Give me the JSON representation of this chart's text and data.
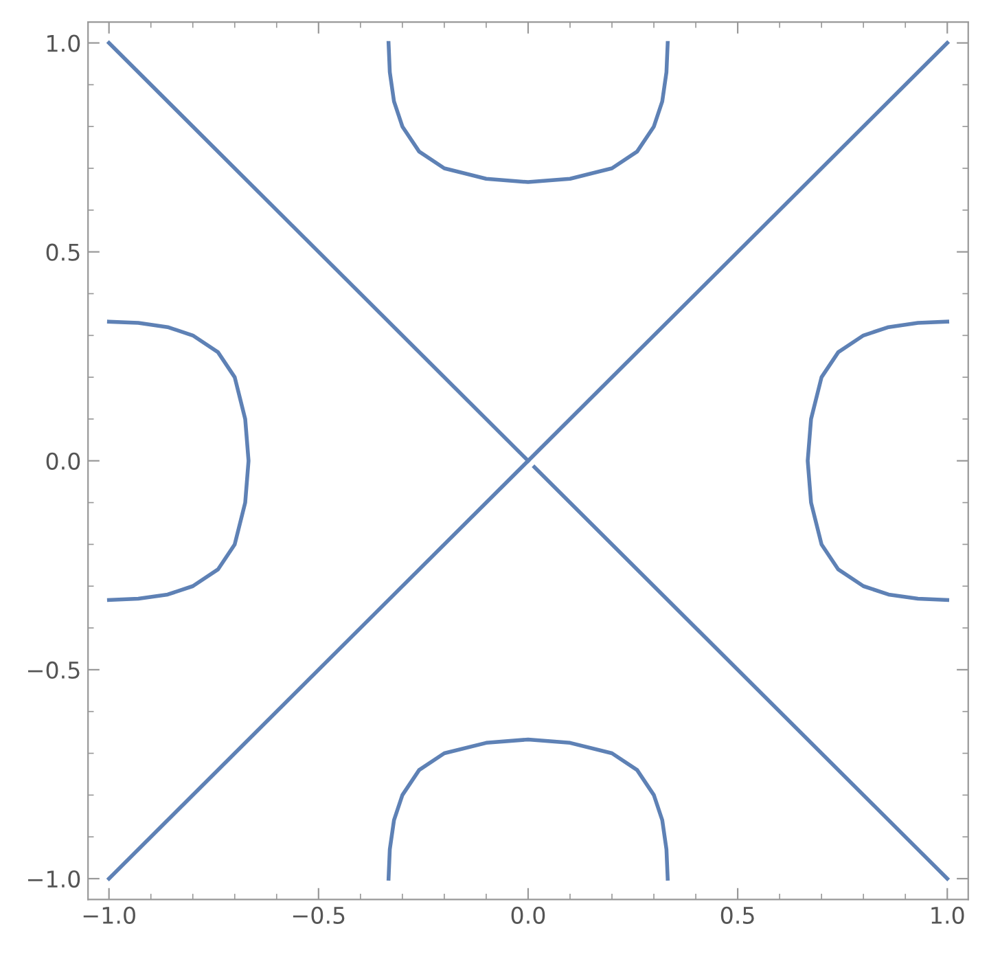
{
  "chart_data": {
    "type": "line",
    "xlim": [
      -1.05,
      1.05
    ],
    "ylim": [
      -1.05,
      1.05
    ],
    "xticks": [
      {
        "value": -1.0,
        "label": "−1.0"
      },
      {
        "value": -0.5,
        "label": "−0.5"
      },
      {
        "value": 0.0,
        "label": "0.0"
      },
      {
        "value": 0.5,
        "label": "0.5"
      },
      {
        "value": 1.0,
        "label": "1.0"
      }
    ],
    "yticks": [
      {
        "value": -1.0,
        "label": "−1.0"
      },
      {
        "value": -0.5,
        "label": "−0.5"
      },
      {
        "value": 0.0,
        "label": "0.0"
      },
      {
        "value": 0.5,
        "label": "0.5"
      },
      {
        "value": 1.0,
        "label": "1.0"
      }
    ],
    "grid": false,
    "legend": false,
    "marker": "none",
    "line_style": "solid",
    "series": [
      {
        "color": "#5e81b5",
        "x": [
          -1.0,
          1.0
        ],
        "values": [
          -1.0,
          1.0
        ]
      },
      {
        "color": "#5e81b5",
        "x": [
          -1.0,
          0.0
        ],
        "values": [
          1.0,
          0.0
        ]
      },
      {
        "color": "#5e81b5",
        "x": [
          0.015,
          1.0
        ],
        "values": [
          -0.015,
          -1.0
        ]
      },
      {
        "color": "#5e81b5",
        "x": [
          -0.333,
          -0.33,
          -0.32,
          -0.3,
          -0.26,
          -0.2,
          -0.1,
          0.0,
          0.1,
          0.2,
          0.26,
          0.3,
          0.32,
          0.33,
          0.333
        ],
        "values": [
          1.0,
          0.93,
          0.86,
          0.8,
          0.74,
          0.7,
          0.675,
          0.667,
          0.675,
          0.7,
          0.74,
          0.8,
          0.86,
          0.93,
          1.0
        ]
      },
      {
        "color": "#5e81b5",
        "x": [
          -0.333,
          -0.33,
          -0.32,
          -0.3,
          -0.26,
          -0.2,
          -0.1,
          0.0,
          0.1,
          0.2,
          0.26,
          0.3,
          0.32,
          0.33,
          0.333
        ],
        "values": [
          -1.0,
          -0.93,
          -0.86,
          -0.8,
          -0.74,
          -0.7,
          -0.675,
          -0.667,
          -0.675,
          -0.7,
          -0.74,
          -0.8,
          -0.86,
          -0.93,
          -1.0
        ]
      },
      {
        "color": "#5e81b5",
        "x": [
          -1.0,
          -0.93,
          -0.86,
          -0.8,
          -0.74,
          -0.7,
          -0.675,
          -0.667,
          -0.675,
          -0.7,
          -0.74,
          -0.8,
          -0.86,
          -0.93,
          -1.0
        ],
        "values": [
          0.333,
          0.33,
          0.32,
          0.3,
          0.26,
          0.2,
          0.1,
          0.0,
          -0.1,
          -0.2,
          -0.26,
          -0.3,
          -0.32,
          -0.33,
          -0.333
        ]
      },
      {
        "color": "#5e81b5",
        "x": [
          1.0,
          0.93,
          0.86,
          0.8,
          0.74,
          0.7,
          0.675,
          0.667,
          0.675,
          0.7,
          0.74,
          0.8,
          0.86,
          0.93,
          1.0
        ],
        "values": [
          0.333,
          0.33,
          0.32,
          0.3,
          0.26,
          0.2,
          0.1,
          0.0,
          -0.1,
          -0.2,
          -0.26,
          -0.3,
          -0.32,
          -0.33,
          -0.333
        ]
      }
    ]
  }
}
